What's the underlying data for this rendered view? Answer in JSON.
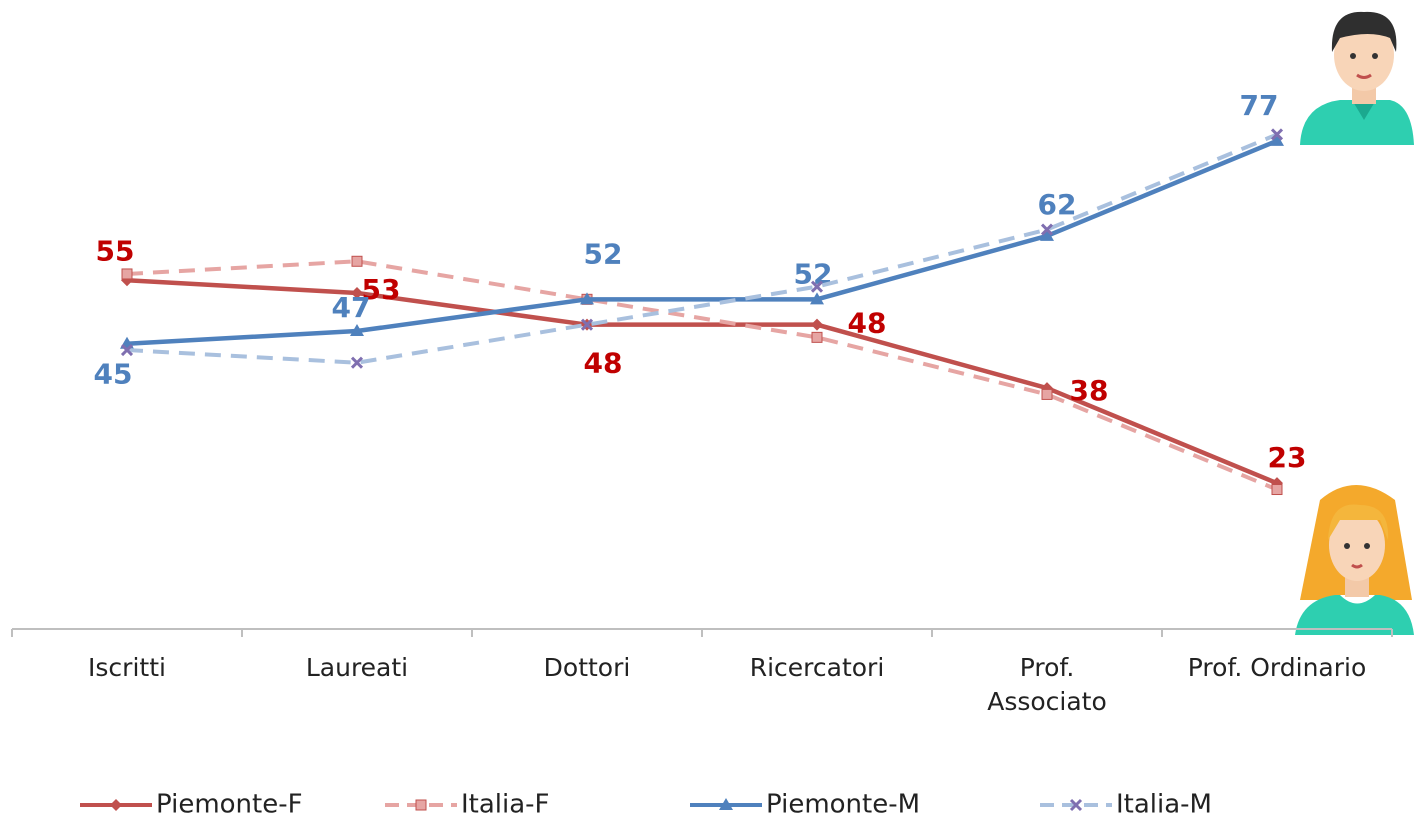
{
  "chart_data": {
    "type": "line",
    "categories": [
      "Iscritti",
      "Laureati",
      "Dottori",
      "Ricercatori",
      "Prof. Associato",
      "Prof. Ordinario"
    ],
    "ylim": [
      0,
      100
    ],
    "series": [
      {
        "name": "Piemonte-F",
        "color": "#c0504d",
        "label_color": "#c00000",
        "dashed": false,
        "marker": "diamond",
        "values": [
          55,
          53,
          48,
          48,
          38,
          23
        ],
        "show_labels": true
      },
      {
        "name": "Italia-F",
        "color": "#e6a5a3",
        "dashed": true,
        "marker": "square",
        "values": [
          56,
          58,
          52,
          46,
          37,
          22
        ],
        "show_labels": false
      },
      {
        "name": "Piemonte-M",
        "color": "#4f81bd",
        "label_color": "#4f81bd",
        "dashed": false,
        "marker": "triangle",
        "values": [
          45,
          47,
          52,
          52,
          62,
          77
        ],
        "show_labels": true
      },
      {
        "name": "Italia-M",
        "color": "#a9c0de",
        "dashed": true,
        "marker": "x",
        "values": [
          44,
          42,
          48,
          54,
          63,
          78
        ],
        "show_labels": false
      }
    ]
  }
}
